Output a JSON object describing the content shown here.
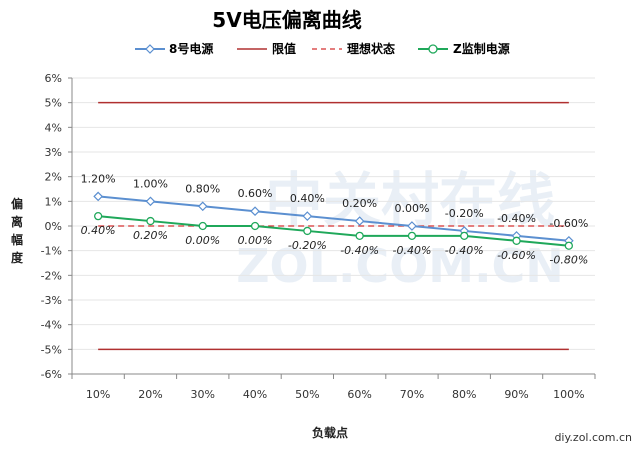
{
  "chart_data": {
    "type": "line",
    "title": "5V电压偏离曲线",
    "xlabel": "负载点",
    "ylabel": "偏离幅度",
    "categories": [
      "10%",
      "20%",
      "30%",
      "40%",
      "50%",
      "60%",
      "70%",
      "80%",
      "90%",
      "100%"
    ],
    "ylim": [
      -6,
      6
    ],
    "yticks": [
      -6,
      -5,
      -4,
      -3,
      -2,
      -1,
      0,
      1,
      2,
      3,
      4,
      5,
      6
    ],
    "ytick_labels": [
      "-6%",
      "-5%",
      "-4%",
      "-3%",
      "-2%",
      "-1%",
      "0%",
      "1%",
      "2%",
      "3%",
      "4%",
      "5%",
      "6%"
    ],
    "grid": true,
    "legend_position": "top",
    "series": [
      {
        "name": "8号电源",
        "color": "#5b8fd0",
        "marker": "diamond",
        "values": [
          1.2,
          1.0,
          0.8,
          0.6,
          0.4,
          0.2,
          0.0,
          -0.2,
          -0.4,
          -0.6
        ],
        "labels": [
          "1.20%",
          "1.00%",
          "0.80%",
          "0.60%",
          "0.40%",
          "0.20%",
          "0.00%",
          "-0.20%",
          "-0.40%",
          "-0.60%"
        ]
      },
      {
        "name": "限值",
        "color": "#b03030",
        "style": "solid",
        "values_upper": 5,
        "values_lower": -5
      },
      {
        "name": "理想状态",
        "color": "#d43030",
        "style": "dashed",
        "value": 0
      },
      {
        "name": "Z监制电源",
        "color": "#1fa85a",
        "marker": "circle",
        "values": [
          0.4,
          0.2,
          0.0,
          0.0,
          -0.2,
          -0.4,
          -0.4,
          -0.4,
          -0.6,
          -0.8
        ],
        "labels": [
          "0.40%",
          "0.20%",
          "0.00%",
          "0.00%",
          "-0.20%",
          "-0.40%",
          "-0.40%",
          "-0.40%",
          "-0.60%",
          "-0.80%"
        ]
      }
    ]
  },
  "watermark": {
    "line1": "中关村在线",
    "line2": "ZOL.COM.CN"
  },
  "source": "diy.zol.com.cn"
}
